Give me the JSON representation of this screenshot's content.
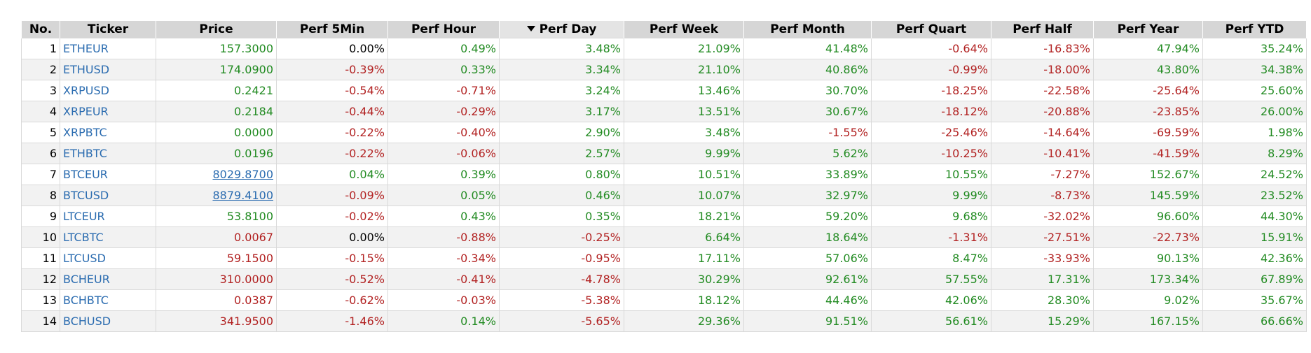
{
  "table": {
    "sorted_column": "perf_day",
    "sort_direction": "desc",
    "headers": {
      "no": "No.",
      "ticker": "Ticker",
      "price": "Price",
      "perf_5min": "Perf 5Min",
      "perf_hour": "Perf Hour",
      "perf_day": "Perf Day",
      "perf_week": "Perf Week",
      "perf_month": "Perf Month",
      "perf_quart": "Perf Quart",
      "perf_half": "Perf Half",
      "perf_year": "Perf Year",
      "perf_ytd": "Perf YTD"
    },
    "colors": {
      "positive": "#228b22",
      "negative": "#b22222",
      "neutral": "#000000",
      "link": "#2b6cb0"
    },
    "rows": [
      {
        "no": "1",
        "ticker": "ETHEUR",
        "price": "157.3000",
        "price_trend": "pos",
        "price_link": false,
        "perf_5min": "0.00%",
        "perf_hour": "0.49%",
        "perf_day": "3.48%",
        "perf_week": "21.09%",
        "perf_month": "41.48%",
        "perf_quart": "-0.64%",
        "perf_half": "-16.83%",
        "perf_year": "47.94%",
        "perf_ytd": "35.24%"
      },
      {
        "no": "2",
        "ticker": "ETHUSD",
        "price": "174.0900",
        "price_trend": "pos",
        "price_link": false,
        "perf_5min": "-0.39%",
        "perf_hour": "0.33%",
        "perf_day": "3.34%",
        "perf_week": "21.10%",
        "perf_month": "40.86%",
        "perf_quart": "-0.99%",
        "perf_half": "-18.00%",
        "perf_year": "43.80%",
        "perf_ytd": "34.38%"
      },
      {
        "no": "3",
        "ticker": "XRPUSD",
        "price": "0.2421",
        "price_trend": "pos",
        "price_link": false,
        "perf_5min": "-0.54%",
        "perf_hour": "-0.71%",
        "perf_day": "3.24%",
        "perf_week": "13.46%",
        "perf_month": "30.70%",
        "perf_quart": "-18.25%",
        "perf_half": "-22.58%",
        "perf_year": "-25.64%",
        "perf_ytd": "25.60%"
      },
      {
        "no": "4",
        "ticker": "XRPEUR",
        "price": "0.2184",
        "price_trend": "pos",
        "price_link": false,
        "perf_5min": "-0.44%",
        "perf_hour": "-0.29%",
        "perf_day": "3.17%",
        "perf_week": "13.51%",
        "perf_month": "30.67%",
        "perf_quart": "-18.12%",
        "perf_half": "-20.88%",
        "perf_year": "-23.85%",
        "perf_ytd": "26.00%"
      },
      {
        "no": "5",
        "ticker": "XRPBTC",
        "price": "0.0000",
        "price_trend": "pos",
        "price_link": false,
        "perf_5min": "-0.22%",
        "perf_hour": "-0.40%",
        "perf_day": "2.90%",
        "perf_week": "3.48%",
        "perf_month": "-1.55%",
        "perf_quart": "-25.46%",
        "perf_half": "-14.64%",
        "perf_year": "-69.59%",
        "perf_ytd": "1.98%"
      },
      {
        "no": "6",
        "ticker": "ETHBTC",
        "price": "0.0196",
        "price_trend": "pos",
        "price_link": false,
        "perf_5min": "-0.22%",
        "perf_hour": "-0.06%",
        "perf_day": "2.57%",
        "perf_week": "9.99%",
        "perf_month": "5.62%",
        "perf_quart": "-10.25%",
        "perf_half": "-10.41%",
        "perf_year": "-41.59%",
        "perf_ytd": "8.29%"
      },
      {
        "no": "7",
        "ticker": "BTCEUR",
        "price": "8029.8700",
        "price_trend": "pos",
        "price_link": true,
        "perf_5min": "0.04%",
        "perf_hour": "0.39%",
        "perf_day": "0.80%",
        "perf_week": "10.51%",
        "perf_month": "33.89%",
        "perf_quart": "10.55%",
        "perf_half": "-7.27%",
        "perf_year": "152.67%",
        "perf_ytd": "24.52%"
      },
      {
        "no": "8",
        "ticker": "BTCUSD",
        "price": "8879.4100",
        "price_trend": "pos",
        "price_link": true,
        "perf_5min": "-0.09%",
        "perf_hour": "0.05%",
        "perf_day": "0.46%",
        "perf_week": "10.07%",
        "perf_month": "32.97%",
        "perf_quart": "9.99%",
        "perf_half": "-8.73%",
        "perf_year": "145.59%",
        "perf_ytd": "23.52%"
      },
      {
        "no": "9",
        "ticker": "LTCEUR",
        "price": "53.8100",
        "price_trend": "pos",
        "price_link": false,
        "perf_5min": "-0.02%",
        "perf_hour": "0.43%",
        "perf_day": "0.35%",
        "perf_week": "18.21%",
        "perf_month": "59.20%",
        "perf_quart": "9.68%",
        "perf_half": "-32.02%",
        "perf_year": "96.60%",
        "perf_ytd": "44.30%"
      },
      {
        "no": "10",
        "ticker": "LTCBTC",
        "price": "0.0067",
        "price_trend": "neg",
        "price_link": false,
        "perf_5min": "0.00%",
        "perf_hour": "-0.88%",
        "perf_day": "-0.25%",
        "perf_week": "6.64%",
        "perf_month": "18.64%",
        "perf_quart": "-1.31%",
        "perf_half": "-27.51%",
        "perf_year": "-22.73%",
        "perf_ytd": "15.91%"
      },
      {
        "no": "11",
        "ticker": "LTCUSD",
        "price": "59.1500",
        "price_trend": "neg",
        "price_link": false,
        "perf_5min": "-0.15%",
        "perf_hour": "-0.34%",
        "perf_day": "-0.95%",
        "perf_week": "17.11%",
        "perf_month": "57.06%",
        "perf_quart": "8.47%",
        "perf_half": "-33.93%",
        "perf_year": "90.13%",
        "perf_ytd": "42.36%"
      },
      {
        "no": "12",
        "ticker": "BCHEUR",
        "price": "310.0000",
        "price_trend": "neg",
        "price_link": false,
        "perf_5min": "-0.52%",
        "perf_hour": "-0.41%",
        "perf_day": "-4.78%",
        "perf_week": "30.29%",
        "perf_month": "92.61%",
        "perf_quart": "57.55%",
        "perf_half": "17.31%",
        "perf_year": "173.34%",
        "perf_ytd": "67.89%"
      },
      {
        "no": "13",
        "ticker": "BCHBTC",
        "price": "0.0387",
        "price_trend": "neg",
        "price_link": false,
        "perf_5min": "-0.62%",
        "perf_hour": "-0.03%",
        "perf_day": "-5.38%",
        "perf_week": "18.12%",
        "perf_month": "44.46%",
        "perf_quart": "42.06%",
        "perf_half": "28.30%",
        "perf_year": "9.02%",
        "perf_ytd": "35.67%"
      },
      {
        "no": "14",
        "ticker": "BCHUSD",
        "price": "341.9500",
        "price_trend": "neg",
        "price_link": false,
        "perf_5min": "-1.46%",
        "perf_hour": "0.14%",
        "perf_day": "-5.65%",
        "perf_week": "29.36%",
        "perf_month": "91.51%",
        "perf_quart": "56.61%",
        "perf_half": "15.29%",
        "perf_year": "167.15%",
        "perf_ytd": "66.66%"
      }
    ]
  }
}
